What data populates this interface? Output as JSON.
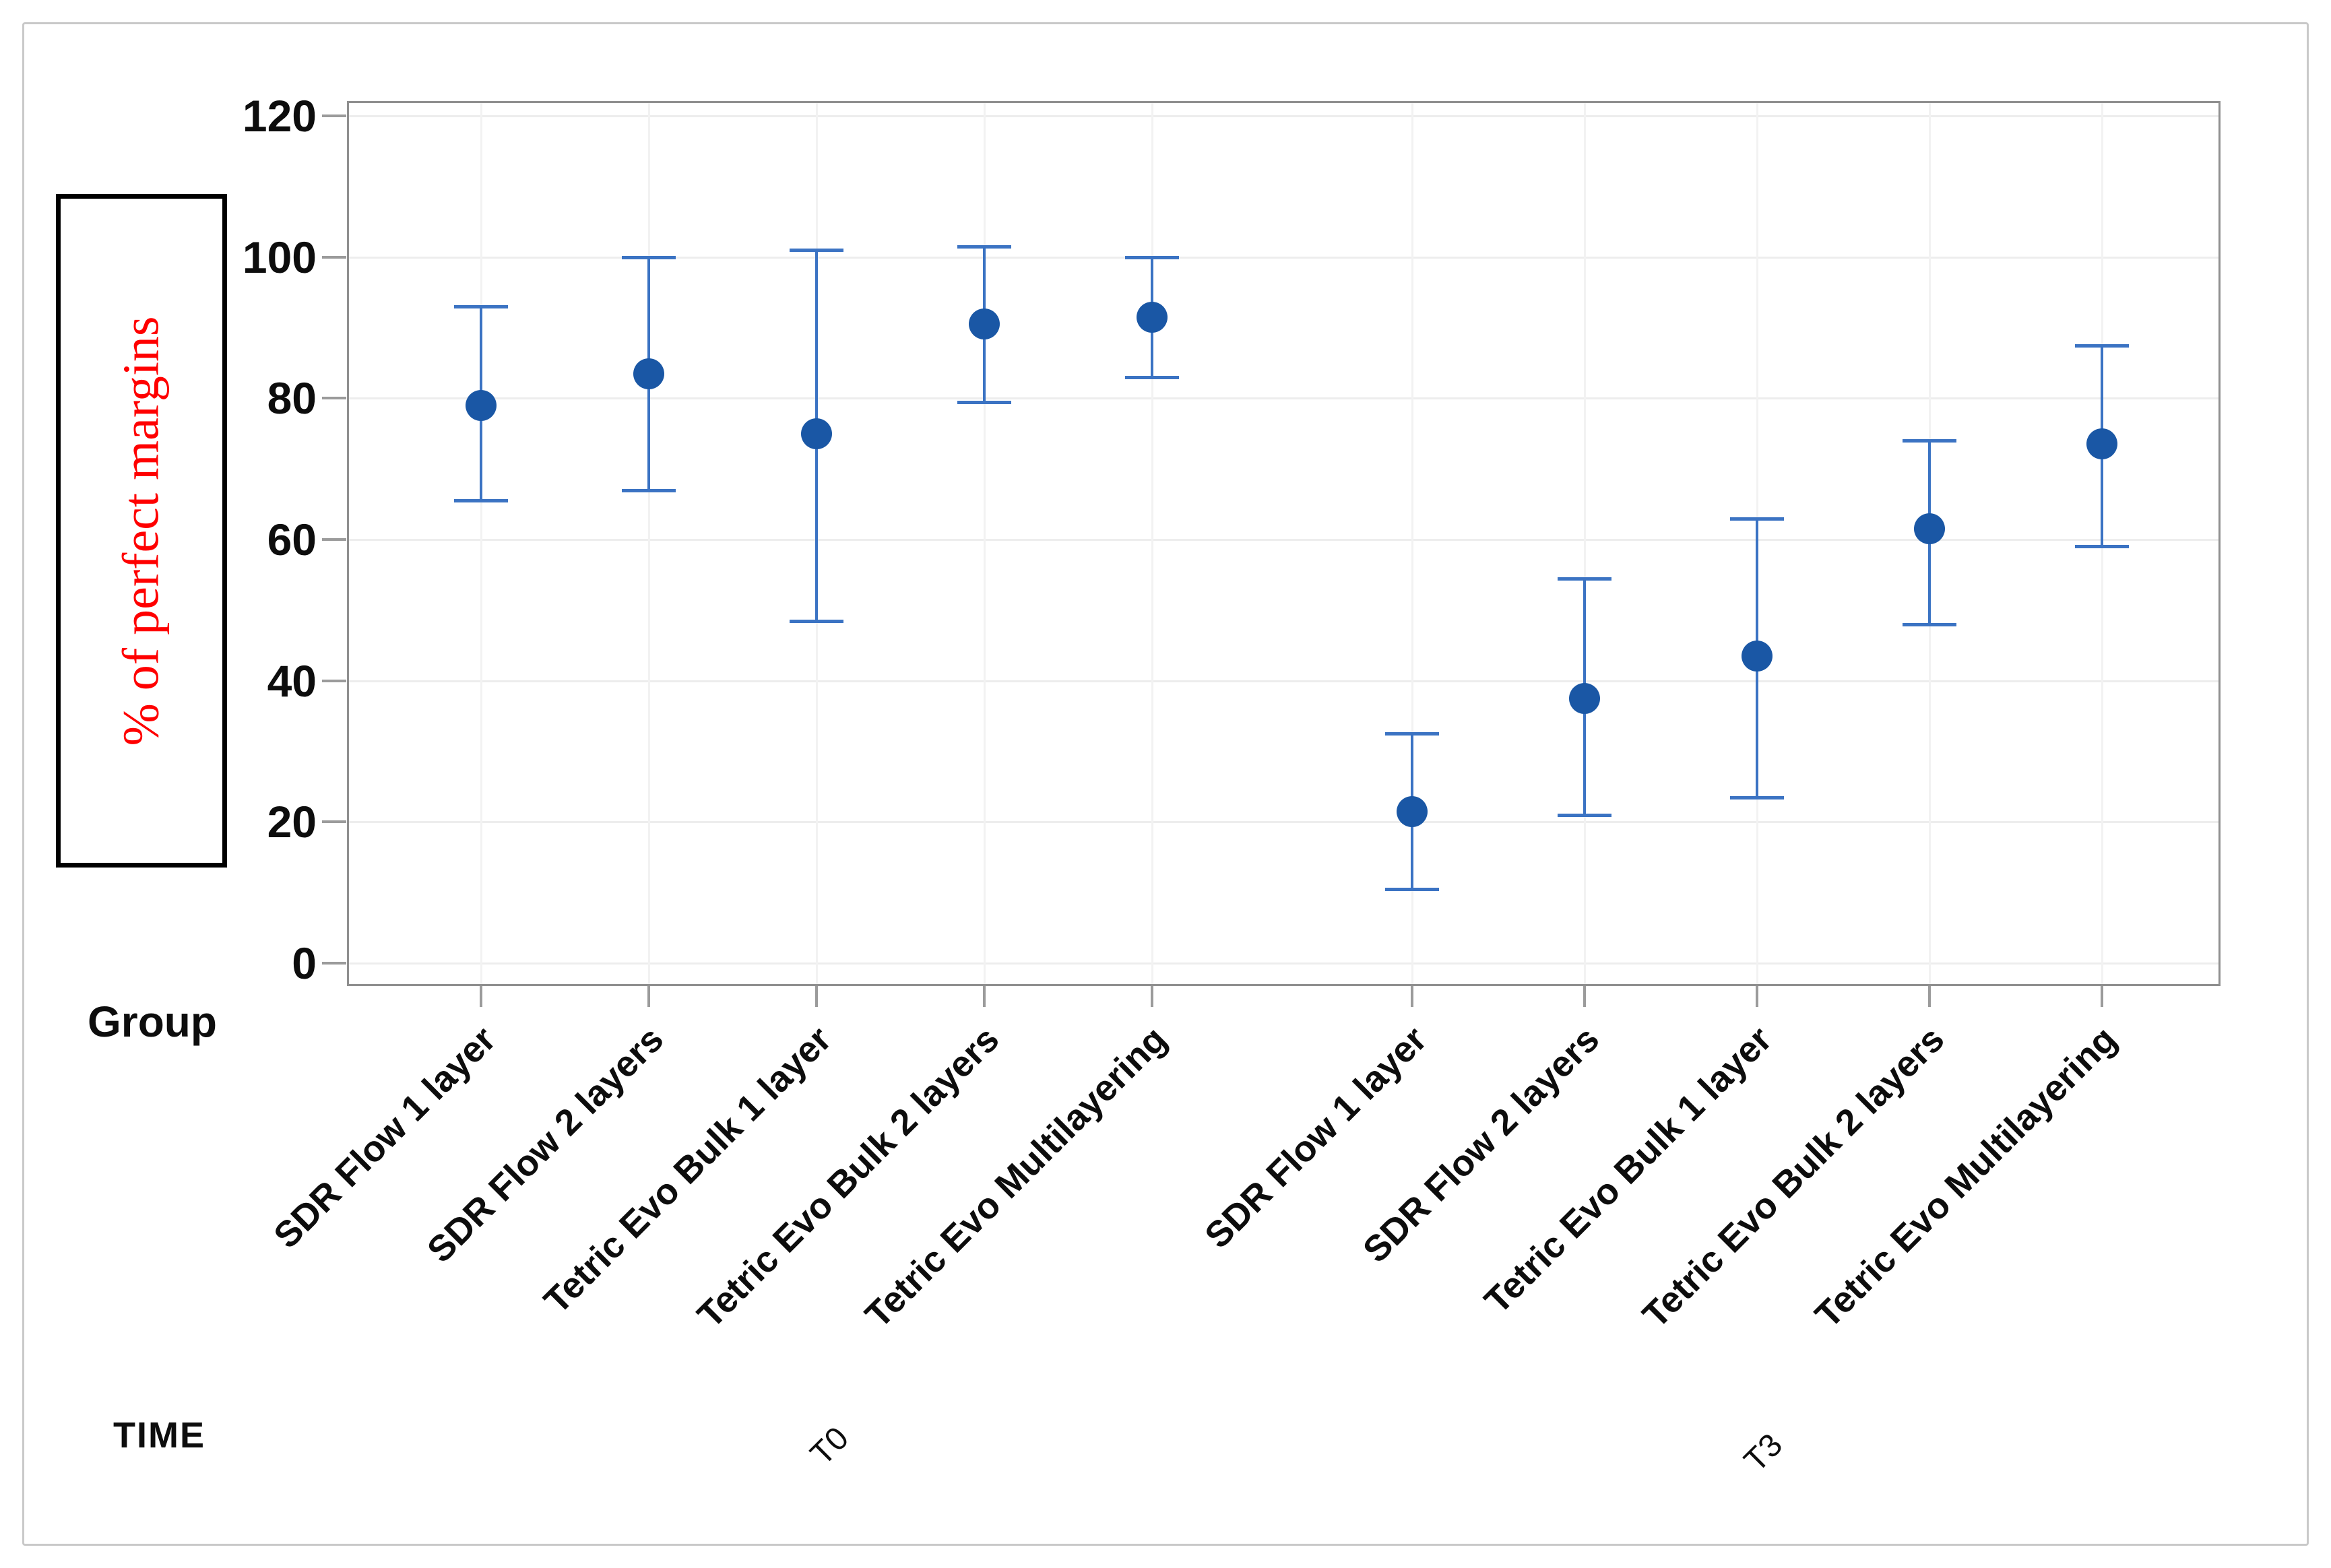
{
  "figure": {
    "group_row_label": "Group",
    "time_row_label": "TIME"
  },
  "y_axis": {
    "label": "% of perfect margins",
    "ticks": [
      0,
      20,
      40,
      60,
      80,
      100,
      120
    ]
  },
  "chart_data": {
    "type": "interval",
    "subtype": "mean with 95% CI error bars (interval plot)",
    "title": "",
    "ylabel": "% of perfect margins",
    "ylabel_color": "#ff0000",
    "xlabel_rows": {
      "group": "Group",
      "time": "TIME"
    },
    "ylim": [
      0,
      120
    ],
    "yticks": [
      0,
      20,
      40,
      60,
      80,
      100,
      120
    ],
    "grid": "light gray horizontal gridlines at y ticks and vertical gridlines at each category",
    "legend_position": "none",
    "categories": [
      "SDR Flow 1 layer",
      "SDR Flow 2 layers",
      "Tetric Evo Bulk 1 layer",
      "Tetric Evo Bulk 2 layers",
      "Tetric Evo Multilayering"
    ],
    "groups": [
      "T0",
      "T3"
    ],
    "series": [
      {
        "time": "T0",
        "points": [
          {
            "category": "SDR Flow 1 layer",
            "mean": 79,
            "ci_low": 65.5,
            "ci_high": 93
          },
          {
            "category": "SDR Flow 2 layers",
            "mean": 83.5,
            "ci_low": 67,
            "ci_high": 100
          },
          {
            "category": "Tetric Evo Bulk 1 layer",
            "mean": 75,
            "ci_low": 48.5,
            "ci_high": 101
          },
          {
            "category": "Tetric Evo Bulk 2 layers",
            "mean": 90.5,
            "ci_low": 79.5,
            "ci_high": 101.5
          },
          {
            "category": "Tetric Evo Multilayering",
            "mean": 91.5,
            "ci_low": 83,
            "ci_high": 100
          }
        ]
      },
      {
        "time": "T3",
        "points": [
          {
            "category": "SDR Flow 1 layer",
            "mean": 21.5,
            "ci_low": 10.5,
            "ci_high": 32.5
          },
          {
            "category": "SDR Flow 2 layers",
            "mean": 37.5,
            "ci_low": 21,
            "ci_high": 54.5
          },
          {
            "category": "Tetric Evo Bulk 1 layer",
            "mean": 43.5,
            "ci_low": 23.5,
            "ci_high": 63
          },
          {
            "category": "Tetric Evo Bulk 2 layers",
            "mean": 61.5,
            "ci_low": 48,
            "ci_high": 74
          },
          {
            "category": "Tetric Evo Multilayering",
            "mean": 73.5,
            "ci_low": 59,
            "ci_high": 87.5
          }
        ]
      }
    ],
    "colors": {
      "marker": "#1a57a5",
      "error_bar": "#3b73c3",
      "ylabel": "#ff0000"
    }
  }
}
